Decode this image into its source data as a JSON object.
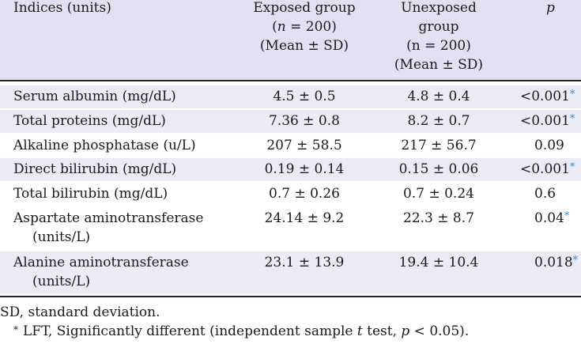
{
  "table": {
    "headers": {
      "indices": "Indices (units)",
      "exposed": {
        "line1": "Exposed group",
        "n_var": "n",
        "n_eq": " = 200)",
        "n_open": "(",
        "stat": "(Mean ± SD)"
      },
      "unexposed": {
        "line1": "Unexposed",
        "line2": "group",
        "line3": "(n = 200)",
        "stat": "(Mean ± SD)"
      },
      "p": "p"
    },
    "rows": [
      {
        "index": "Serum albumin (mg/dL)",
        "index2": "",
        "exposed": "4.5 ± 0.5",
        "unexposed": "4.8 ± 0.4",
        "p": "<0.001",
        "star": "*"
      },
      {
        "index": "Total proteins (mg/dL)",
        "index2": "",
        "exposed": "7.36 ± 0.8",
        "unexposed": "8.2 ± 0.7",
        "p": "<0.001",
        "star": "*"
      },
      {
        "index": "Alkaline phosphatase (u/L)",
        "index2": "",
        "exposed": "207 ± 58.5",
        "unexposed": "217 ± 56.7",
        "p": "0.09",
        "star": ""
      },
      {
        "index": "Direct bilirubin (mg/dL)",
        "index2": "",
        "exposed": "0.19 ± 0.14",
        "unexposed": "0.15 ± 0.06",
        "p": "<0.001",
        "star": "*"
      },
      {
        "index": "Total bilirubin (mg/dL)",
        "index2": "",
        "exposed": "0.7 ± 0.26",
        "unexposed": "0.7 ± 0.24",
        "p": "0.6",
        "star": ""
      },
      {
        "index": "Aspartate aminotransferase",
        "index2": "(units/L)",
        "exposed": "24.14 ± 9.2",
        "unexposed": "22.3 ± 8.7",
        "p": "0.04",
        "star": "*"
      },
      {
        "index": "Alanine aminotransferase",
        "index2": "(units/L)",
        "exposed": "23.1 ± 13.9",
        "unexposed": "19.4 ± 10.4",
        "p": "0.018",
        "star": "*"
      }
    ]
  },
  "footnotes": {
    "sd": "SD, standard deviation.",
    "star_mark": "*",
    "lft_a": "LFT, Significantly different (independent sample ",
    "lft_t": "t",
    "lft_b": " test, ",
    "lft_p": "p",
    "lft_c": " < 0.05)."
  },
  "colors": {
    "header_bg": "#e1e1f3",
    "row_shade": "#ebebf5",
    "star": "#3a8fd0"
  }
}
